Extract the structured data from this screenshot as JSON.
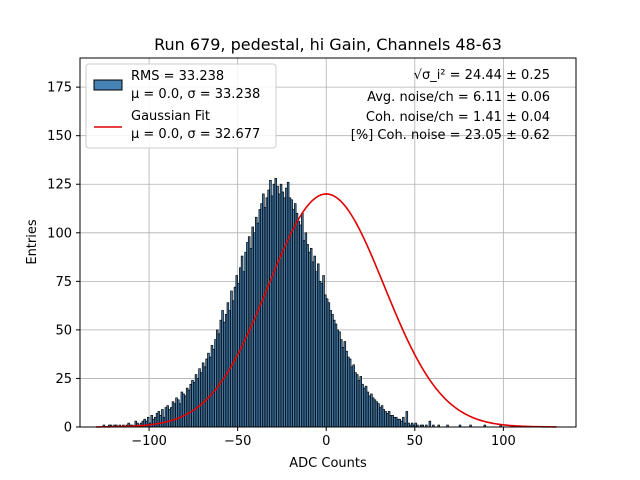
{
  "chart_data": {
    "type": "bar",
    "title": "Run 679, pedestal, hi Gain, Channels 48-63",
    "xlabel": "ADC Counts",
    "ylabel": "Entries",
    "xlim": [
      -139,
      141
    ],
    "ylim": [
      0,
      190
    ],
    "xticks": [
      -100,
      -50,
      0,
      50,
      100
    ],
    "yticks": [
      0,
      25,
      50,
      75,
      100,
      125,
      150,
      175
    ],
    "grid": true,
    "legend_position": "top-left",
    "series": [
      {
        "name": "RMS = 33.238",
        "name_line2": "μ = 0.0, σ = 33.238",
        "kind": "histogram",
        "color": "#4682b4",
        "edge_color": "#000000",
        "x_start": -126,
        "bin_width": 1,
        "values": [
          1,
          0,
          0,
          1,
          1,
          0,
          1,
          1,
          0,
          1,
          0,
          1,
          0,
          1,
          2,
          1,
          1,
          0,
          3,
          2,
          1,
          2,
          3,
          4,
          3,
          5,
          2,
          6,
          4,
          5,
          7,
          8,
          6,
          9,
          5,
          10,
          11,
          9,
          10,
          13,
          12,
          15,
          14,
          12,
          18,
          17,
          16,
          20,
          19,
          22,
          24,
          23,
          27,
          25,
          30,
          28,
          33,
          31,
          35,
          38,
          36,
          42,
          40,
          45,
          50,
          48,
          55,
          60,
          54,
          58,
          64,
          60,
          70,
          65,
          72,
          78,
          74,
          82,
          88,
          80,
          90,
          95,
          98,
          92,
          103,
          100,
          108,
          105,
          112,
          115,
          120,
          113,
          118,
          122,
          127,
          119,
          125,
          128,
          124,
          120,
          125,
          121,
          118,
          123,
          126,
          118,
          117,
          112,
          115,
          110,
          106,
          104,
          110,
          96,
          100,
          94,
          90,
          92,
          85,
          88,
          80,
          84,
          75,
          74,
          78,
          68,
          66,
          64,
          60,
          58,
          55,
          53,
          50,
          49,
          45,
          41,
          44,
          39,
          36,
          35,
          31,
          32,
          28,
          27,
          24,
          26,
          22,
          20,
          21,
          18,
          16,
          17,
          15,
          14,
          13,
          12,
          10,
          11,
          9,
          8,
          7,
          8,
          6,
          6,
          5,
          5,
          4,
          4,
          3,
          5,
          2,
          8,
          2,
          1,
          2,
          1,
          2,
          1,
          0,
          1,
          1,
          0,
          1,
          0,
          3,
          0,
          1,
          0,
          0,
          1,
          0,
          0,
          0,
          0,
          1,
          0,
          0,
          0,
          0,
          0,
          0,
          1,
          0,
          0,
          0,
          0,
          0,
          1,
          0,
          0,
          0,
          0,
          0,
          0,
          0,
          1,
          0,
          0,
          0,
          0,
          0,
          0,
          0,
          0,
          1,
          0,
          0,
          0,
          0,
          0,
          0,
          0,
          0,
          0,
          0,
          0,
          0,
          0,
          0,
          0,
          0,
          0,
          0,
          0,
          0,
          0,
          0,
          0,
          0,
          0,
          0,
          0,
          0,
          0,
          0,
          0,
          0,
          0,
          0,
          0,
          0,
          0,
          0,
          0,
          0,
          0,
          0,
          0,
          0,
          0,
          0,
          0
        ]
      },
      {
        "name": "Gaussian Fit",
        "name_line2": "μ = 0.0, σ = 32.677",
        "kind": "gaussian",
        "color": "#e00000",
        "mu": 0.0,
        "sigma": 32.677,
        "amplitude": 120
      }
    ],
    "annotations": [
      "√σ_i² = 24.44 ± 0.25",
      "Avg. noise/ch = 6.11 ± 0.06",
      "Coh. noise/ch = 1.41 ± 0.04",
      "[%] Coh. noise = 23.05 ± 0.62"
    ]
  },
  "colors": {
    "bar_fill": "#4682b4",
    "bar_edge": "#000000",
    "fit_line": "#e00000",
    "grid": "#b0b0b0"
  }
}
